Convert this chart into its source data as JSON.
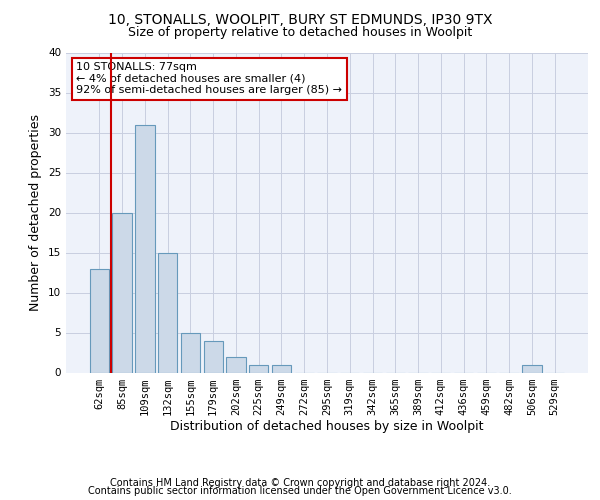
{
  "title1": "10, STONALLS, WOOLPIT, BURY ST EDMUNDS, IP30 9TX",
  "title2": "Size of property relative to detached houses in Woolpit",
  "xlabel": "Distribution of detached houses by size in Woolpit",
  "ylabel": "Number of detached properties",
  "bin_labels": [
    "62sqm",
    "85sqm",
    "109sqm",
    "132sqm",
    "155sqm",
    "179sqm",
    "202sqm",
    "225sqm",
    "249sqm",
    "272sqm",
    "295sqm",
    "319sqm",
    "342sqm",
    "365sqm",
    "389sqm",
    "412sqm",
    "436sqm",
    "459sqm",
    "482sqm",
    "506sqm",
    "529sqm"
  ],
  "bar_values": [
    13,
    20,
    31,
    15,
    5,
    4,
    2,
    1,
    1,
    0,
    0,
    0,
    0,
    0,
    0,
    0,
    0,
    0,
    0,
    1,
    0
  ],
  "bar_color": "#ccd9e8",
  "bar_edge_color": "#6699bb",
  "annotation_box_text": "10 STONALLS: 77sqm\n← 4% of detached houses are smaller (4)\n92% of semi-detached houses are larger (85) →",
  "annotation_box_color": "#ffffff",
  "annotation_box_edge_color": "#cc0000",
  "marker_line_color": "#cc0000",
  "ylim": [
    0,
    40
  ],
  "yticks": [
    0,
    5,
    10,
    15,
    20,
    25,
    30,
    35,
    40
  ],
  "footer_line1": "Contains HM Land Registry data © Crown copyright and database right 2024.",
  "footer_line2": "Contains public sector information licensed under the Open Government Licence v3.0.",
  "bg_color": "#eef2fa",
  "grid_color": "#c8cee0",
  "title_fontsize": 10,
  "subtitle_fontsize": 9,
  "axis_label_fontsize": 9,
  "xlabel_fontsize": 9,
  "tick_fontsize": 7.5,
  "footer_fontsize": 7,
  "annotation_fontsize": 8
}
